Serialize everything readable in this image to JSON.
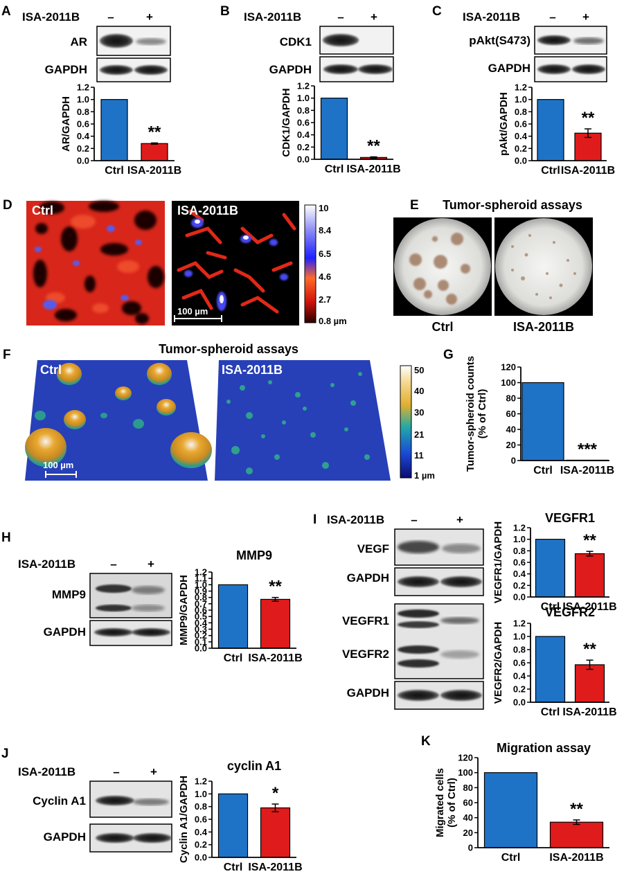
{
  "treatment_label": "ISA-2011B",
  "minus_sign": "–",
  "plus_sign": "+",
  "loading_control": "GAPDH",
  "panels": {
    "A": {
      "letter": "A",
      "target": "AR"
    },
    "B": {
      "letter": "B",
      "target": "CDK1"
    },
    "C": {
      "letter": "C",
      "target": "pAkt(S473)"
    },
    "D": {
      "letter": "D",
      "left_label": "Ctrl",
      "right_label": "ISA-2011B",
      "scale_bar": "100 µm",
      "colorbar_ticks": [
        "10",
        "8.4",
        "6.5",
        "4.6",
        "2.7",
        "0.8 µm"
      ]
    },
    "E": {
      "letter": "E",
      "title": "Tumor-spheroid assays",
      "left_label": "Ctrl",
      "right_label": "ISA-2011B"
    },
    "F": {
      "letter": "F",
      "title": "Tumor-spheroid assays",
      "left_label": "Ctrl",
      "right_label": "ISA-2011B",
      "scale_bar": "100 µm",
      "colorbar_ticks": [
        "50",
        "40",
        "30",
        "21",
        "11",
        "1 µm"
      ]
    },
    "G": {
      "letter": "G"
    },
    "H": {
      "letter": "H",
      "target": "MMP9"
    },
    "I": {
      "letter": "I",
      "targets": [
        "VEGF",
        "VEGFR1",
        "VEGFR2"
      ]
    },
    "J": {
      "letter": "J",
      "target": "Cyclin A1"
    },
    "K": {
      "letter": "K"
    }
  },
  "colors": {
    "ctrl_bar": "#1f73c7",
    "treated_bar": "#e01b1b"
  },
  "chart_data": [
    {
      "id": "A",
      "type": "bar",
      "categories": [
        "Ctrl",
        "ISA-2011B"
      ],
      "values": [
        1.0,
        0.28
      ],
      "errors": [
        0,
        0.01
      ],
      "ylabel": "AR/GAPDH",
      "ylim": [
        0,
        1.2
      ],
      "yticks": [
        "0.0",
        "0.2",
        "0.4",
        "0.6",
        "0.8",
        "1.0",
        "1.2"
      ],
      "annotations": [
        "",
        "**"
      ]
    },
    {
      "id": "B",
      "type": "bar",
      "categories": [
        "Ctrl",
        "ISA-2011B"
      ],
      "values": [
        1.0,
        0.03
      ],
      "errors": [
        0,
        0.01
      ],
      "ylabel": "CDK1/GAPDH",
      "ylim": [
        0,
        1.2
      ],
      "yticks": [
        "0.0",
        "0.2",
        "0.4",
        "0.6",
        "0.8",
        "1.0",
        "1.2"
      ],
      "annotations": [
        "",
        "**"
      ]
    },
    {
      "id": "C",
      "type": "bar",
      "categories": [
        "Ctrl",
        "ISA-2011B"
      ],
      "values": [
        1.0,
        0.45
      ],
      "errors": [
        0,
        0.07
      ],
      "ylabel": "pAkt/GAPDH",
      "ylim": [
        0,
        1.2
      ],
      "yticks": [
        "0.0",
        "0.2",
        "0.4",
        "0.6",
        "0.8",
        "1.0",
        "1.2"
      ],
      "annotations": [
        "",
        "**"
      ]
    },
    {
      "id": "G",
      "type": "bar",
      "categories": [
        "Ctrl",
        "ISA-2011B"
      ],
      "values": [
        100,
        0.5
      ],
      "errors": [
        0,
        0
      ],
      "ylabel": "Tumor-spheroid counts (% of Ctrl)",
      "ylim": [
        0,
        120
      ],
      "yticks": [
        "0",
        "20",
        "40",
        "60",
        "80",
        "100",
        "120"
      ],
      "annotations": [
        "",
        "***"
      ]
    },
    {
      "id": "H",
      "type": "bar",
      "title": "MMP9",
      "categories": [
        "Ctrl",
        "ISA-2011B"
      ],
      "values": [
        1.0,
        0.77
      ],
      "errors": [
        0,
        0.03
      ],
      "ylabel": "MMP9/GAPDH",
      "ylim": [
        0,
        1.2
      ],
      "yticks": [
        "0.0",
        "0.1",
        "0.2",
        "0.3",
        "0.4",
        "0.5",
        "0.6",
        "0.7",
        "0.8",
        "0.9",
        "1.0",
        "1.1",
        "1.2"
      ],
      "annotations": [
        "",
        "**"
      ]
    },
    {
      "id": "I1",
      "type": "bar",
      "title": "VEGFR1",
      "categories": [
        "Ctrl",
        "ISA-2011B"
      ],
      "values": [
        1.0,
        0.75
      ],
      "errors": [
        0,
        0.04
      ],
      "ylabel": "VEGFR1/GAPDH",
      "ylim": [
        0,
        1.2
      ],
      "yticks": [
        "0.0",
        "0.2",
        "0.4",
        "0.6",
        "0.8",
        "1.0",
        "1.2"
      ],
      "annotations": [
        "",
        "**"
      ]
    },
    {
      "id": "I2",
      "type": "bar",
      "title": "VEGFR2",
      "categories": [
        "Ctrl",
        "ISA-2011B"
      ],
      "values": [
        1.0,
        0.57
      ],
      "errors": [
        0,
        0.07
      ],
      "ylabel": "VEGFR2/GAPDH",
      "ylim": [
        0,
        1.2
      ],
      "yticks": [
        "0.0",
        "0.2",
        "0.4",
        "0.6",
        "0.8",
        "1.0",
        "1.2"
      ],
      "annotations": [
        "",
        "**"
      ]
    },
    {
      "id": "J",
      "type": "bar",
      "title": "cyclin A1",
      "categories": [
        "Ctrl",
        "ISA-2011B"
      ],
      "values": [
        1.0,
        0.78
      ],
      "errors": [
        0,
        0.06
      ],
      "ylabel": "Cyclin A1/GAPDH",
      "ylim": [
        0,
        1.2
      ],
      "yticks": [
        "0.0",
        "0.2",
        "0.4",
        "0.6",
        "0.8",
        "1.0",
        "1.2"
      ],
      "annotations": [
        "",
        "*"
      ]
    },
    {
      "id": "K",
      "type": "bar",
      "title": "Migration assay",
      "categories": [
        "Ctrl",
        "ISA-2011B"
      ],
      "values": [
        100,
        34
      ],
      "errors": [
        0,
        3
      ],
      "ylabel": "Migrated cells (% of Ctrl)",
      "ylim": [
        0,
        120
      ],
      "yticks": [
        "0",
        "20",
        "40",
        "60",
        "80",
        "100",
        "120"
      ],
      "annotations": [
        "",
        "**"
      ]
    }
  ]
}
